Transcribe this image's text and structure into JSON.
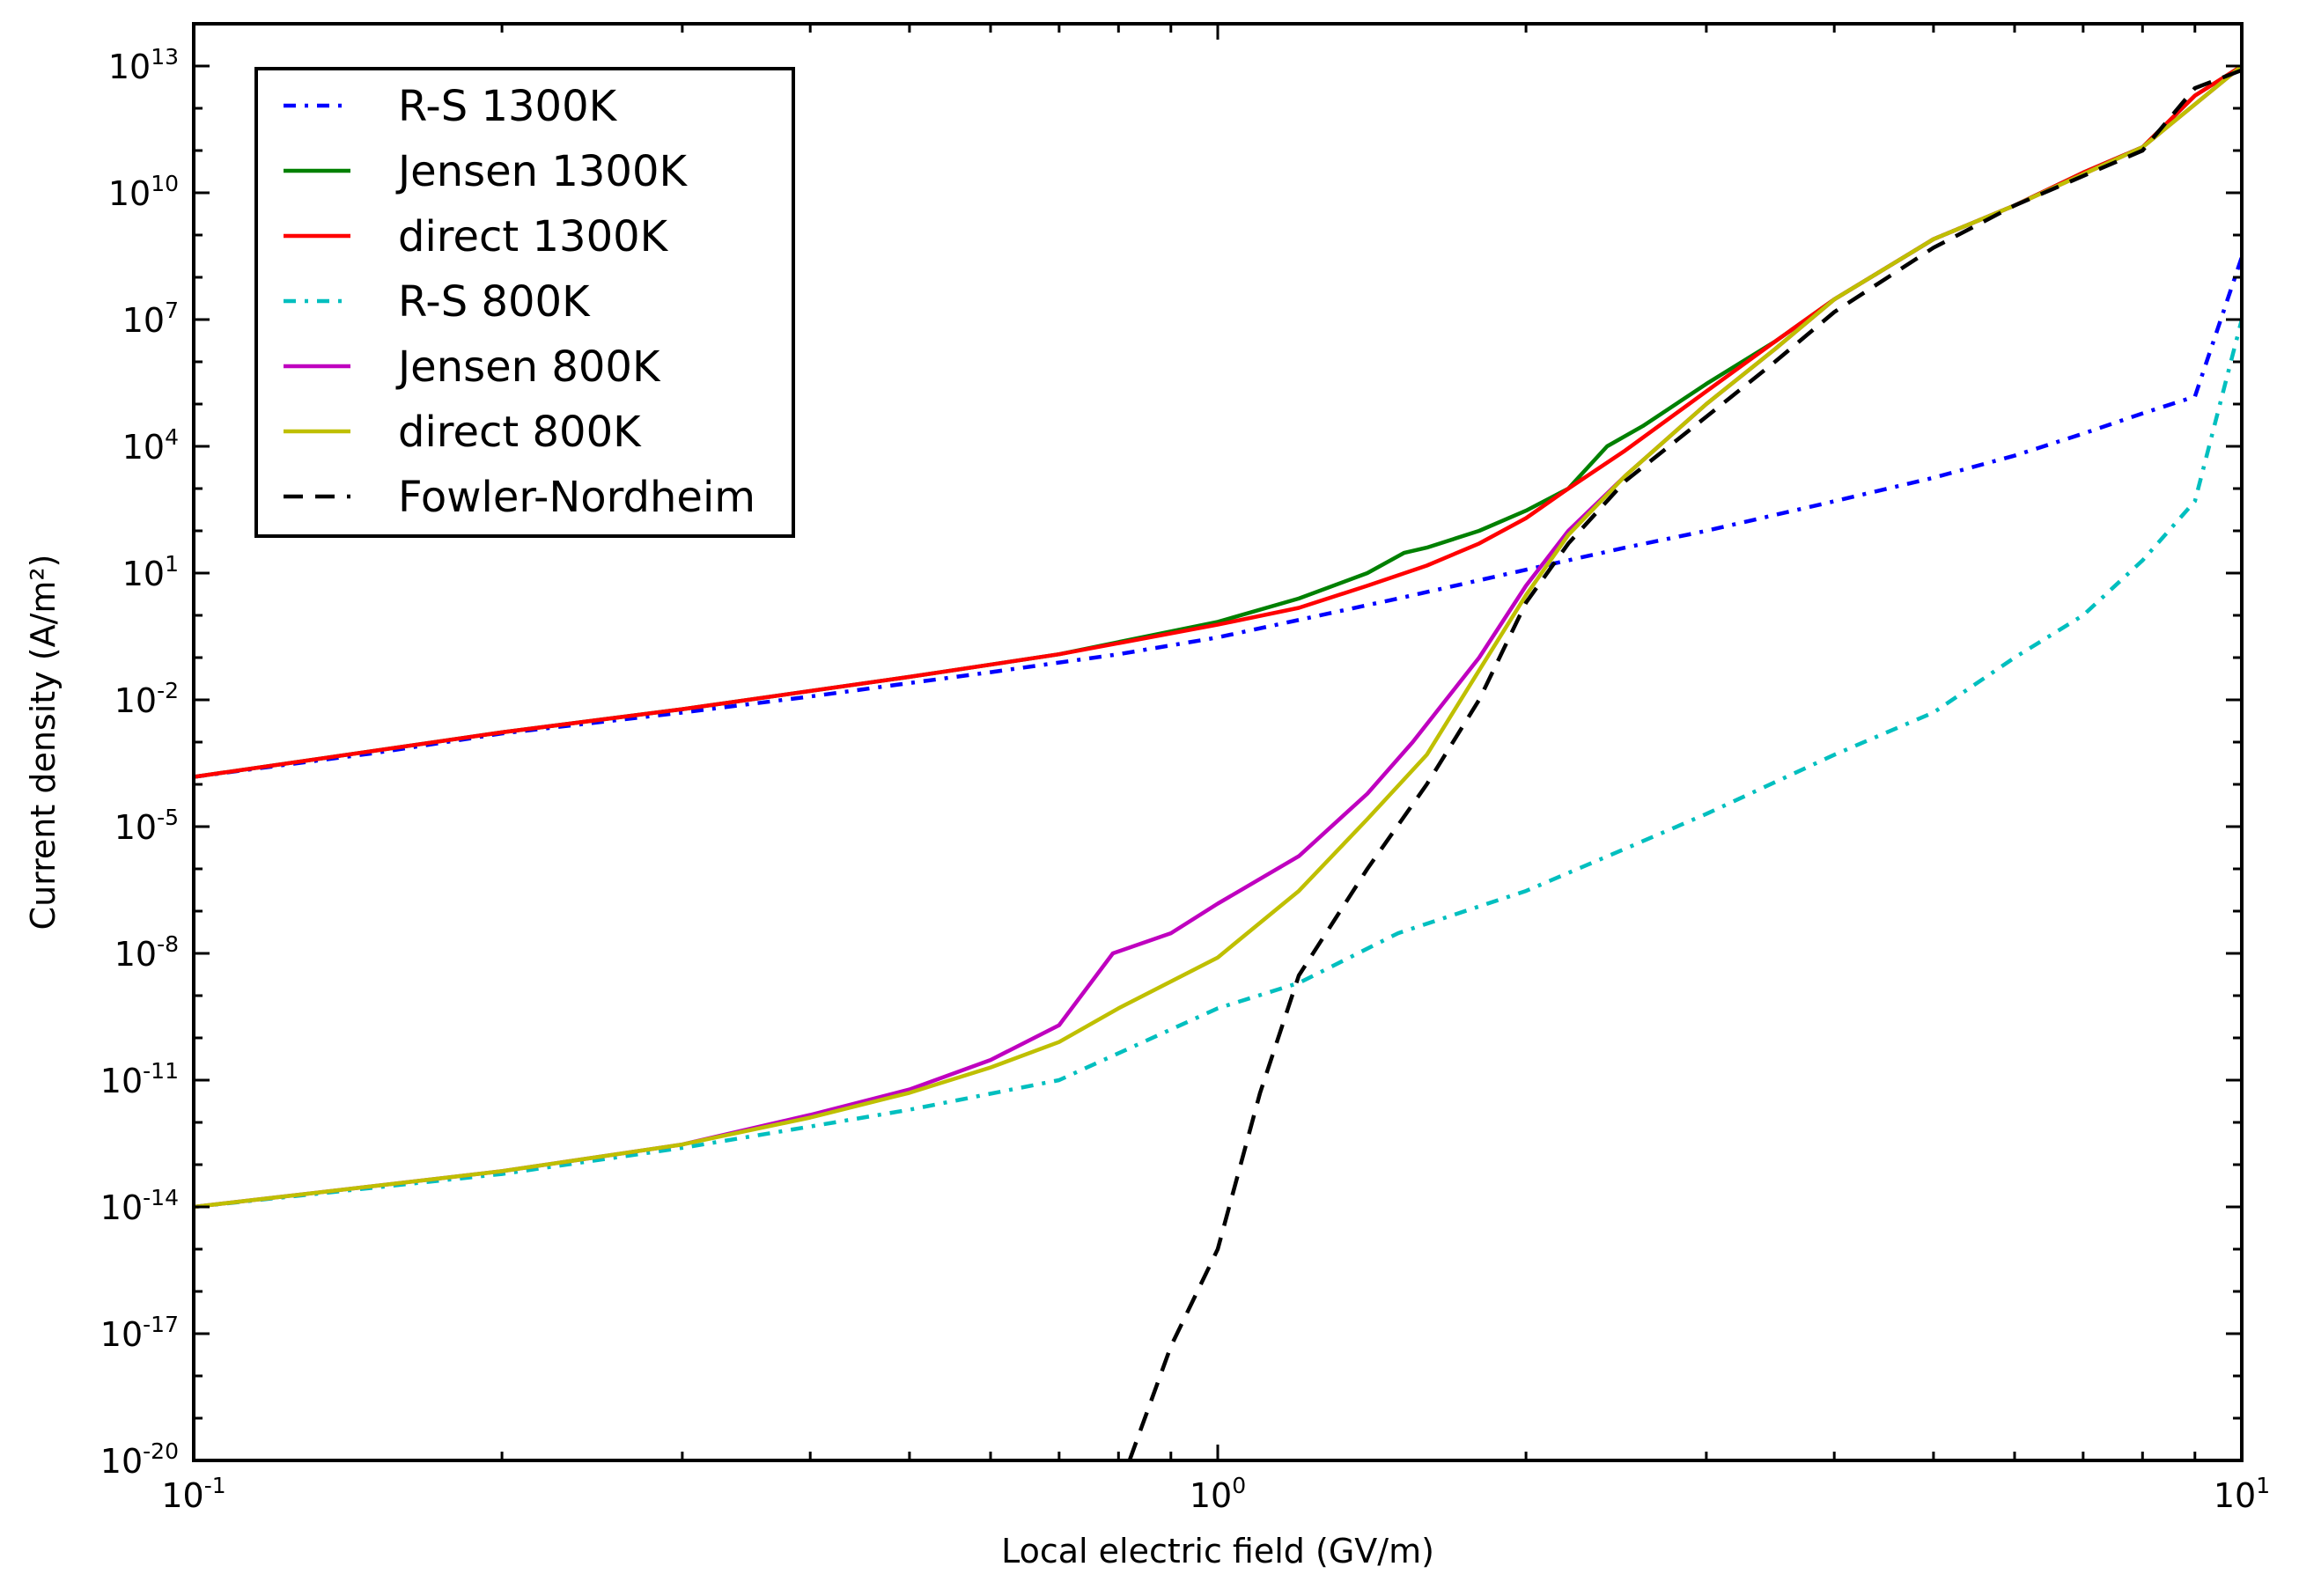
{
  "chart_data": {
    "type": "line",
    "xlabel": "Local electric field (GV/m)",
    "ylabel": "Current density (A/m²)",
    "x_scale": "log",
    "y_scale": "log",
    "xlim": [
      0.1,
      10
    ],
    "ylim": [
      1e-20,
      100000000000000.0
    ],
    "x_ticks": [
      {
        "value": 0.1,
        "base": "10",
        "exp": "-1"
      },
      {
        "value": 1,
        "base": "10",
        "exp": "0"
      },
      {
        "value": 10,
        "base": "10",
        "exp": "1"
      }
    ],
    "y_ticks": [
      {
        "value": 1e-20,
        "base": "10",
        "exp": "-20"
      },
      {
        "value": 1e-17,
        "base": "10",
        "exp": "-17"
      },
      {
        "value": 1e-14,
        "base": "10",
        "exp": "-14"
      },
      {
        "value": 1e-11,
        "base": "10",
        "exp": "-11"
      },
      {
        "value": 1e-08,
        "base": "10",
        "exp": "-8"
      },
      {
        "value": 1e-05,
        "base": "10",
        "exp": "-5"
      },
      {
        "value": 0.01,
        "base": "10",
        "exp": "-2"
      },
      {
        "value": 10.0,
        "base": "10",
        "exp": "1"
      },
      {
        "value": 10000.0,
        "base": "10",
        "exp": "4"
      },
      {
        "value": 10000000.0,
        "base": "10",
        "exp": "7"
      },
      {
        "value": 10000000000.0,
        "base": "10",
        "exp": "10"
      },
      {
        "value": 10000000000000.0,
        "base": "10",
        "exp": "13"
      }
    ],
    "grid": false,
    "legend_position": "top-left",
    "series": [
      {
        "name": "R-S 1300K",
        "color": "#0000ff",
        "dash": "dashdot",
        "points": [
          [
            0.1,
            0.00015
          ],
          [
            0.15,
            0.00055
          ],
          [
            0.2,
            0.0016
          ],
          [
            0.3,
            0.005
          ],
          [
            0.4,
            0.012
          ],
          [
            0.5,
            0.025
          ],
          [
            0.6,
            0.045
          ],
          [
            0.8,
            0.12
          ],
          [
            1.0,
            0.3
          ],
          [
            1.5,
            2.5
          ],
          [
            2.0,
            12
          ],
          [
            2.5,
            40
          ],
          [
            3.0,
            100
          ],
          [
            4.0,
            500
          ],
          [
            5.0,
            1800.0
          ],
          [
            6.0,
            6000.0
          ],
          [
            7.0,
            20000.0
          ],
          [
            8.0,
            60000.0
          ],
          [
            9.0,
            150000.0
          ],
          [
            10.0,
            300000000.0
          ]
        ]
      },
      {
        "name": "Jensen 1300K",
        "color": "#008000",
        "dash": "solid",
        "points": [
          [
            0.1,
            0.00015
          ],
          [
            0.2,
            0.0017
          ],
          [
            0.3,
            0.006
          ],
          [
            0.5,
            0.035
          ],
          [
            0.7,
            0.12
          ],
          [
            1.0,
            0.7
          ],
          [
            1.2,
            2.5
          ],
          [
            1.4,
            10
          ],
          [
            1.52,
            30
          ],
          [
            1.6,
            40
          ],
          [
            1.8,
            100
          ],
          [
            2.0,
            300
          ],
          [
            2.2,
            1000.0
          ],
          [
            2.4,
            10000.0
          ],
          [
            2.6,
            30000.0
          ],
          [
            3.0,
            300000.0
          ],
          [
            3.5,
            3000000.0
          ],
          [
            4.0,
            30000000.0
          ],
          [
            5.0,
            800000000.0
          ],
          [
            6.0,
            5000000000.0
          ],
          [
            7.0,
            30000000000.0
          ],
          [
            8.0,
            120000000000.0
          ],
          [
            9.0,
            2000000000000.0
          ],
          [
            10.0,
            10000000000000.0
          ]
        ]
      },
      {
        "name": "direct 1300K",
        "color": "#ff0000",
        "dash": "solid",
        "points": [
          [
            0.1,
            0.00015
          ],
          [
            0.2,
            0.0017
          ],
          [
            0.3,
            0.006
          ],
          [
            0.5,
            0.035
          ],
          [
            0.7,
            0.12
          ],
          [
            1.0,
            0.6
          ],
          [
            1.2,
            1.5
          ],
          [
            1.4,
            5
          ],
          [
            1.6,
            15
          ],
          [
            1.8,
            50
          ],
          [
            2.0,
            200
          ],
          [
            2.2,
            1000.0
          ],
          [
            2.5,
            8000.0
          ],
          [
            3.0,
            200000.0
          ],
          [
            3.5,
            3000000.0
          ],
          [
            4.0,
            30000000.0
          ],
          [
            5.0,
            800000000.0
          ],
          [
            6.0,
            5000000000.0
          ],
          [
            7.0,
            30000000000.0
          ],
          [
            8.0,
            120000000000.0
          ],
          [
            9.0,
            2000000000000.0
          ],
          [
            10.0,
            10000000000000.0
          ]
        ]
      },
      {
        "name": "R-S 800K",
        "color": "#00bfbf",
        "dash": "dashdot",
        "points": [
          [
            0.1,
            1e-14
          ],
          [
            0.2,
            6e-14
          ],
          [
            0.3,
            2.5e-13
          ],
          [
            0.4,
            8e-13
          ],
          [
            0.5,
            2e-12
          ],
          [
            0.7,
            1e-11
          ],
          [
            1.0,
            5e-10
          ],
          [
            1.2,
            2e-09
          ],
          [
            1.5,
            3e-08
          ],
          [
            2.0,
            3e-07
          ],
          [
            2.5,
            3e-06
          ],
          [
            3.0,
            2e-05
          ],
          [
            4.0,
            0.0005
          ],
          [
            5.0,
            0.005
          ],
          [
            6.0,
            0.1
          ],
          [
            7.0,
            1
          ],
          [
            8.0,
            20
          ],
          [
            9.0,
            500
          ],
          [
            10.0,
            10000000.0
          ]
        ]
      },
      {
        "name": "Jensen 800K",
        "color": "#bf00bf",
        "dash": "solid",
        "points": [
          [
            0.1,
            1e-14
          ],
          [
            0.2,
            7e-14
          ],
          [
            0.3,
            3e-13
          ],
          [
            0.4,
            1.5e-12
          ],
          [
            0.5,
            6e-12
          ],
          [
            0.6,
            3e-11
          ],
          [
            0.7,
            2e-10
          ],
          [
            0.79,
            1e-08
          ],
          [
            0.9,
            3e-08
          ],
          [
            1.0,
            1.5e-07
          ],
          [
            1.2,
            2e-06
          ],
          [
            1.4,
            6e-05
          ],
          [
            1.55,
            0.001
          ],
          [
            1.8,
            0.1
          ],
          [
            2.0,
            5
          ],
          [
            2.2,
            100
          ],
          [
            2.5,
            2000.0
          ],
          [
            3.0,
            100000.0
          ],
          [
            3.5,
            2000000.0
          ],
          [
            4.0,
            30000000.0
          ],
          [
            5.0,
            800000000.0
          ],
          [
            6.0,
            5000000000.0
          ],
          [
            8.0,
            120000000000.0
          ],
          [
            10.0,
            10000000000000.0
          ]
        ]
      },
      {
        "name": "direct 800K",
        "color": "#bfbf00",
        "dash": "solid",
        "points": [
          [
            0.1,
            1e-14
          ],
          [
            0.2,
            7e-14
          ],
          [
            0.3,
            3e-13
          ],
          [
            0.4,
            1.3e-12
          ],
          [
            0.5,
            5e-12
          ],
          [
            0.6,
            2e-11
          ],
          [
            0.7,
            8e-11
          ],
          [
            0.8,
            5e-10
          ],
          [
            1.0,
            8e-09
          ],
          [
            1.2,
            3e-07
          ],
          [
            1.4,
            1.5e-05
          ],
          [
            1.6,
            0.0005
          ],
          [
            1.8,
            0.05
          ],
          [
            2.0,
            3
          ],
          [
            2.2,
            80
          ],
          [
            2.5,
            2000.0
          ],
          [
            3.0,
            100000.0
          ],
          [
            3.5,
            2000000.0
          ],
          [
            4.0,
            30000000.0
          ],
          [
            5.0,
            800000000.0
          ],
          [
            6.0,
            5000000000.0
          ],
          [
            8.0,
            120000000000.0
          ],
          [
            10.0,
            10000000000000.0
          ]
        ]
      },
      {
        "name": "Fowler-Nordheim",
        "color": "#000000",
        "dash": "dashed",
        "points": [
          [
            0.82,
            1e-20
          ],
          [
            0.9,
            5e-18
          ],
          [
            1.0,
            1e-15
          ],
          [
            1.1,
            5e-12
          ],
          [
            1.2,
            3e-09
          ],
          [
            1.4,
            1e-06
          ],
          [
            1.6,
            0.0001
          ],
          [
            1.8,
            0.01
          ],
          [
            2.0,
            2
          ],
          [
            2.2,
            50
          ],
          [
            2.5,
            1500.0
          ],
          [
            3.0,
            50000.0
          ],
          [
            3.5,
            1000000.0
          ],
          [
            4.0,
            15000000.0
          ],
          [
            5.0,
            500000000.0
          ],
          [
            6.0,
            5000000000.0
          ],
          [
            7.0,
            25000000000.0
          ],
          [
            8.0,
            100000000000.0
          ],
          [
            9.0,
            3000000000000.0
          ],
          [
            10.0,
            8000000000000.0
          ]
        ]
      }
    ],
    "legend": {
      "entries": [
        {
          "label": "R-S 1300K",
          "color": "#0000ff",
          "dash": "dashdot"
        },
        {
          "label": "Jensen 1300K",
          "color": "#008000",
          "dash": "solid"
        },
        {
          "label": "direct 1300K",
          "color": "#ff0000",
          "dash": "solid"
        },
        {
          "label": "R-S 800K",
          "color": "#00bfbf",
          "dash": "dashdot"
        },
        {
          "label": "Jensen 800K",
          "color": "#bf00bf",
          "dash": "solid"
        },
        {
          "label": "direct 800K",
          "color": "#bfbf00",
          "dash": "solid"
        },
        {
          "label": "Fowler-Nordheim",
          "color": "#000000",
          "dash": "dashed"
        }
      ]
    }
  }
}
